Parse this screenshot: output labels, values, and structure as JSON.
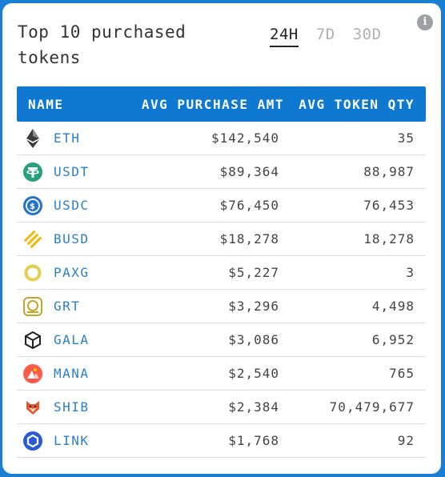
{
  "title": "Top 10 purchased tokens",
  "tabs": [
    {
      "label": "24H",
      "active": true
    },
    {
      "label": "7D",
      "active": false
    },
    {
      "label": "30D",
      "active": false
    }
  ],
  "info_icon": "info-icon",
  "columns": {
    "name": "NAME",
    "amount": "AVG PURCHASE AMT",
    "qty": "AVG TOKEN QTY"
  },
  "rows": [
    {
      "symbol": "ETH",
      "amount": "$142,540",
      "qty": "35",
      "icon": "eth-icon",
      "color": "#3c3c3d"
    },
    {
      "symbol": "USDT",
      "amount": "$89,364",
      "qty": "88,987",
      "icon": "usdt-icon",
      "color": "#26a17b"
    },
    {
      "symbol": "USDC",
      "amount": "$76,450",
      "qty": "76,453",
      "icon": "usdc-icon",
      "color": "#2775ca"
    },
    {
      "symbol": "BUSD",
      "amount": "$18,278",
      "qty": "18,278",
      "icon": "busd-icon",
      "color": "#f0b90b"
    },
    {
      "symbol": "PAXG",
      "amount": "$5,227",
      "qty": "3",
      "icon": "paxg-icon",
      "color": "#e4ce4d"
    },
    {
      "symbol": "GRT",
      "amount": "$3,296",
      "qty": "4,498",
      "icon": "grt-icon",
      "color": "#c9a227"
    },
    {
      "symbol": "GALA",
      "amount": "$3,086",
      "qty": "6,952",
      "icon": "gala-icon",
      "color": "#222222"
    },
    {
      "symbol": "MANA",
      "amount": "$2,540",
      "qty": "765",
      "icon": "mana-icon",
      "color": "#ff5a48"
    },
    {
      "symbol": "SHIB",
      "amount": "$2,384",
      "qty": "70,479,677",
      "icon": "shib-icon",
      "color": "#e8542c"
    },
    {
      "symbol": "LINK",
      "amount": "$1,768",
      "qty": "92",
      "icon": "link-icon",
      "color": "#2a5ada"
    }
  ]
}
